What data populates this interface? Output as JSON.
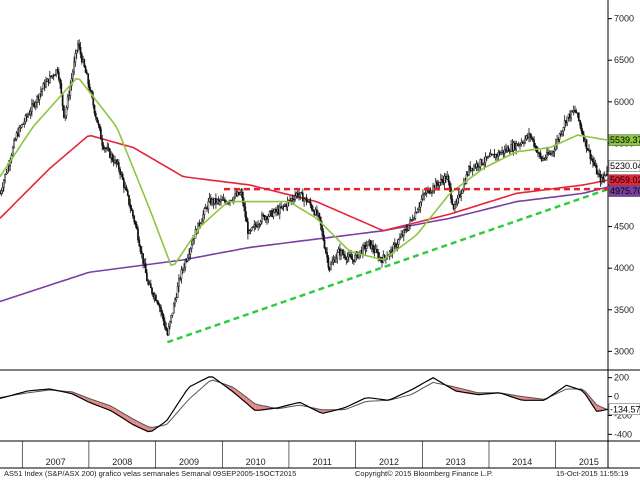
{
  "footer": {
    "left": "AS51 Index (S&P/ASX 200) grafico velas semanales  Semanal 09SEP2005-15OCT2015",
    "center": "Copyright© 2015 Bloomberg Finance L.P.",
    "right": "15-Oct-2015 11:55:19"
  },
  "colors": {
    "price": "#111111",
    "ma_short": "#8dc63f",
    "ma_mid": "#e8243c",
    "ma_long": "#7b3fa0",
    "support": "#2ecc40",
    "resistance": "#e8202a",
    "osc_line": "#000000",
    "osc_fill": "#e07a7a"
  },
  "chart_data": [
    {
      "type": "line",
      "subtype": "candlestick-weekly",
      "title": "",
      "x_axis": {
        "type": "time",
        "range": [
          "2006-09-01",
          "2015-10-15"
        ],
        "tick_labels": [
          "2007",
          "2008",
          "2009",
          "2010",
          "2011",
          "2012",
          "2013",
          "2014",
          "2015"
        ]
      },
      "y_axis": {
        "side": "right",
        "range": [
          2800,
          7200
        ],
        "ticks": [
          3000,
          3500,
          4000,
          4500,
          5000,
          5500,
          6000,
          6500,
          7000
        ]
      },
      "grid": false,
      "series": [
        {
          "role": "price",
          "x": [
            "2006-09-01",
            "2006-12-01",
            "2007-02-15",
            "2007-05-01",
            "2007-07-15",
            "2007-08-20",
            "2007-11-01",
            "2007-12-20",
            "2008-03-15",
            "2008-06-15",
            "2008-09-15",
            "2008-11-20",
            "2009-01-15",
            "2009-03-06",
            "2009-05-15",
            "2009-08-01",
            "2009-10-20",
            "2010-01-15",
            "2010-04-15",
            "2010-05-25",
            "2010-08-01",
            "2010-11-15",
            "2011-02-15",
            "2011-04-15",
            "2011-06-15",
            "2011-08-10",
            "2011-10-01",
            "2011-12-15",
            "2012-03-15",
            "2012-05-20",
            "2012-07-15",
            "2012-10-15",
            "2013-01-15",
            "2013-05-15",
            "2013-06-25",
            "2013-09-15",
            "2013-12-15",
            "2014-03-15",
            "2014-06-15",
            "2014-08-15",
            "2014-10-15",
            "2014-12-15",
            "2015-03-01",
            "2015-04-20",
            "2015-06-15",
            "2015-08-24",
            "2015-09-15",
            "2015-10-15"
          ],
          "values": [
            4900,
            5600,
            5900,
            6200,
            6400,
            5800,
            6700,
            6300,
            5500,
            5200,
            4500,
            3800,
            3600,
            3200,
            3900,
            4400,
            4800,
            4800,
            4900,
            4400,
            4600,
            4700,
            4900,
            4800,
            4600,
            4000,
            4200,
            4100,
            4300,
            4100,
            4200,
            4500,
            4900,
            5100,
            4700,
            5200,
            5300,
            5400,
            5500,
            5600,
            5300,
            5400,
            5800,
            5900,
            5500,
            5100,
            5050,
            5230
          ]
        },
        {
          "name": "",
          "role": "ma-short",
          "x": [
            "2006-09-01",
            "2007-03-01",
            "2007-11-01",
            "2008-06-01",
            "2008-12-01",
            "2009-04-01",
            "2009-09-01",
            "2010-02-01",
            "2010-08-01",
            "2011-01-01",
            "2011-06-01",
            "2011-12-01",
            "2012-06-01",
            "2012-12-01",
            "2013-06-01",
            "2013-12-01",
            "2014-06-01",
            "2014-12-01",
            "2015-05-01",
            "2015-10-15"
          ],
          "values": [
            5100,
            5700,
            6300,
            5700,
            4700,
            4000,
            4500,
            4800,
            4800,
            4800,
            4600,
            4200,
            4100,
            4400,
            4900,
            5200,
            5400,
            5450,
            5600,
            5539.375
          ]
        },
        {
          "name": "",
          "role": "ma-mid",
          "x": [
            "2006-09-01",
            "2007-06-01",
            "2008-01-01",
            "2008-09-01",
            "2009-06-01",
            "2010-06-01",
            "2011-06-01",
            "2012-06-01",
            "2013-06-01",
            "2014-06-01",
            "2015-06-01",
            "2015-10-15"
          ],
          "values": [
            4600,
            5200,
            5600,
            5450,
            5100,
            5000,
            4800,
            4450,
            4650,
            4900,
            5000,
            5059.02
          ]
        },
        {
          "name": "",
          "role": "ma-long",
          "x": [
            "2006-09-01",
            "2008-01-01",
            "2009-06-01",
            "2010-06-01",
            "2011-06-01",
            "2012-06-01",
            "2013-06-01",
            "2014-06-01",
            "2015-06-01",
            "2015-10-15"
          ],
          "values": [
            3600,
            3950,
            4100,
            4250,
            4350,
            4450,
            4600,
            4800,
            4900,
            4975.7
          ]
        },
        {
          "name": "",
          "role": "support-trendline",
          "style": "dashed",
          "x": [
            "2009-03-06",
            "2015-10-15"
          ],
          "values": [
            3110,
            4950
          ]
        },
        {
          "name": "",
          "role": "resistance-level",
          "style": "dashed",
          "x": [
            "2010-01-10",
            "2015-10-15"
          ],
          "values": [
            4950,
            4950
          ]
        }
      ],
      "last_value_labels": [
        {
          "value": "5539.375",
          "role": "ma-short"
        },
        {
          "value": "5230.045",
          "role": "price"
        },
        {
          "value": "5059.020",
          "role": "ma-mid"
        },
        {
          "value": "4975.708",
          "role": "ma-long"
        }
      ],
      "legend": "none"
    },
    {
      "type": "line",
      "subtype": "oscillator",
      "title": "",
      "y_axis": {
        "side": "right",
        "range": [
          -460,
          260
        ],
        "ticks": [
          -400,
          -200,
          0,
          200
        ]
      },
      "grid": false,
      "series": [
        {
          "name": "",
          "role": "oscillator",
          "x": [
            "2006-09-01",
            "2007-02-01",
            "2007-06-01",
            "2007-10-01",
            "2008-01-01",
            "2008-05-01",
            "2008-09-01",
            "2008-12-01",
            "2009-03-01",
            "2009-07-01",
            "2009-11-01",
            "2010-03-01",
            "2010-07-01",
            "2010-11-01",
            "2011-03-01",
            "2011-07-01",
            "2011-11-01",
            "2012-03-01",
            "2012-07-01",
            "2012-11-01",
            "2013-03-01",
            "2013-07-01",
            "2013-11-01",
            "2014-03-01",
            "2014-07-01",
            "2014-11-01",
            "2015-03-01",
            "2015-06-01",
            "2015-08-15",
            "2015-10-15"
          ],
          "values": [
            -20,
            60,
            80,
            30,
            -60,
            -150,
            -300,
            -380,
            -260,
            100,
            220,
            50,
            -150,
            -120,
            -60,
            -180,
            -120,
            -10,
            -40,
            70,
            200,
            60,
            20,
            40,
            -40,
            -40,
            120,
            60,
            -160,
            -134.574
          ]
        },
        {
          "name": "",
          "role": "oscillator-signal",
          "x": [
            "2006-09-01",
            "2007-02-01",
            "2007-06-01",
            "2007-10-01",
            "2008-01-01",
            "2008-05-01",
            "2008-09-01",
            "2008-12-01",
            "2009-03-01",
            "2009-07-01",
            "2009-11-01",
            "2010-03-01",
            "2010-07-01",
            "2010-11-01",
            "2011-03-01",
            "2011-07-01",
            "2011-11-01",
            "2012-03-01",
            "2012-07-01",
            "2012-11-01",
            "2013-03-01",
            "2013-07-01",
            "2013-11-01",
            "2014-03-01",
            "2014-07-01",
            "2014-11-01",
            "2015-03-01",
            "2015-06-01",
            "2015-08-15",
            "2015-10-15"
          ],
          "values": [
            -10,
            40,
            70,
            50,
            -20,
            -100,
            -240,
            -330,
            -300,
            -30,
            180,
            100,
            -80,
            -130,
            -90,
            -140,
            -140,
            -50,
            -40,
            20,
            150,
            100,
            40,
            40,
            0,
            -30,
            80,
            80,
            -90,
            -140
          ]
        }
      ],
      "last_value_labels": [
        {
          "value": "-134.574"
        }
      ],
      "legend": "none"
    }
  ]
}
